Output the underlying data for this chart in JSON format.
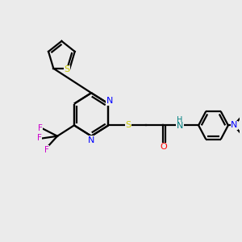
{
  "bg_color": "#ebebeb",
  "bond_color": "#000000",
  "bond_lw": 1.6,
  "atom_colors": {
    "S_thiophene": "#cccc00",
    "S_sulfide": "#cccc00",
    "N_pyrimidine": "#0000ff",
    "N_amide_H": "#008080",
    "N_diethyl": "#0000ff",
    "O": "#ff0000",
    "F": "#cc00cc",
    "C": "#000000"
  },
  "figsize": [
    3.0,
    3.0
  ],
  "dpi": 100,
  "xlim": [
    0,
    12
  ],
  "ylim": [
    0,
    11
  ]
}
